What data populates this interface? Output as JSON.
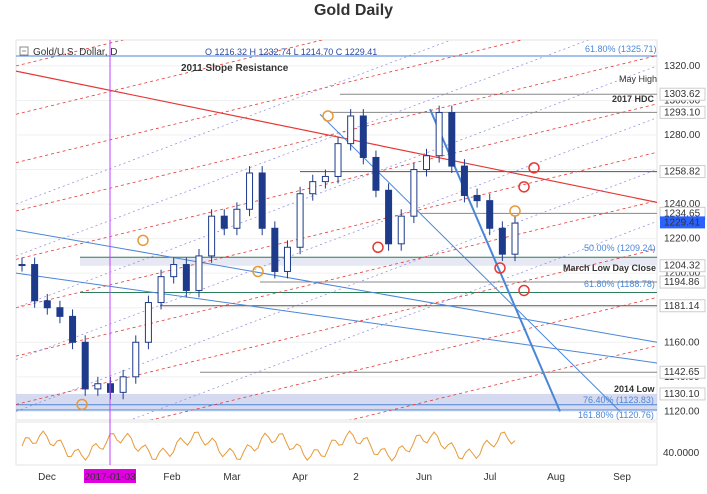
{
  "title": "Gold Daily",
  "header": {
    "instrument": "Gold/U.S. Dollar, D",
    "ohlc": "O 1216.32  H 1232.74  L 1214.70  C 1229.41"
  },
  "annotations": {
    "slope_resistance": "2011 Slope Resistance",
    "may_high": "May High",
    "hdc_2017": "2017 HDC",
    "march_low_close": "March Low Day Close",
    "low_2014": "2014 Low",
    "fib_1325": "61.80% (1325.71)",
    "fib_1209": "50.00% (1209.24)",
    "fib_1188": "61.80% (1188.78)",
    "fib_1123": "76.40% (1123.83)",
    "fib_1120": "161.80% (1120.76)"
  },
  "price_axis": {
    "ticks": [
      "1320.00",
      "1300.00",
      "1280.00",
      "1260.00",
      "1240.00",
      "1220.00",
      "1200.00",
      "1180.00",
      "1160.00",
      "1140.00",
      "1120.00"
    ],
    "boxed_levels": [
      {
        "label": "1303.62",
        "value": 1303.62
      },
      {
        "label": "1293.10",
        "value": 1293.1
      },
      {
        "label": "1258.82",
        "value": 1258.82
      },
      {
        "label": "1234.65",
        "value": 1234.65
      },
      {
        "label": "1204.32",
        "value": 1204.32
      },
      {
        "label": "1194.86",
        "value": 1194.86
      },
      {
        "label": "1181.14",
        "value": 1181.14
      },
      {
        "label": "1142.65",
        "value": 1142.65
      },
      {
        "label": "1130.10",
        "value": 1130.1
      }
    ],
    "last_price": {
      "label": "1229.41",
      "value": 1229.41,
      "color": "#2962ff"
    }
  },
  "time_axis": {
    "labels": [
      "Dec",
      "2017-01-03",
      "Feb",
      "Mar",
      "Apr",
      "2",
      "Jun",
      "Jul",
      "Aug",
      "Sep"
    ],
    "highlight_label": "2017-01-03",
    "highlight_color": "#e000e0"
  },
  "oscillator": {
    "tick": "40.0000"
  },
  "colors": {
    "candle": "#1e3a8a",
    "resistance": "#e53935",
    "channel": "#4a86d8",
    "osc": "#e69a3a",
    "band": "#c5cae9"
  },
  "chart_data": {
    "type": "candlestick",
    "title": "Gold Daily",
    "instrument": "Gold/U.S. Dollar, D",
    "last": {
      "open": 1216.32,
      "high": 1232.74,
      "low": 1214.7,
      "close": 1229.41
    },
    "ylim": [
      1115,
      1335
    ],
    "series": [
      {
        "date": "Nov-28",
        "close": 1205
      },
      {
        "date": "Dec-01",
        "close": 1184
      },
      {
        "date": "Dec-05",
        "close": 1180
      },
      {
        "date": "Dec-08",
        "close": 1175
      },
      {
        "date": "Dec-12",
        "close": 1160
      },
      {
        "date": "Dec-15",
        "close": 1133
      },
      {
        "date": "Dec-19",
        "close": 1136
      },
      {
        "date": "Dec-22",
        "close": 1131
      },
      {
        "date": "Dec-28",
        "close": 1140
      },
      {
        "date": "Jan-03",
        "close": 1160
      },
      {
        "date": "Jan-09",
        "close": 1183
      },
      {
        "date": "Jan-13",
        "close": 1198
      },
      {
        "date": "Jan-19",
        "close": 1205
      },
      {
        "date": "Jan-25",
        "close": 1190
      },
      {
        "date": "Jan-30",
        "close": 1210
      },
      {
        "date": "Feb-06",
        "close": 1233
      },
      {
        "date": "Feb-13",
        "close": 1226
      },
      {
        "date": "Feb-21",
        "close": 1237
      },
      {
        "date": "Feb-27",
        "close": 1258
      },
      {
        "date": "Mar-03",
        "close": 1226
      },
      {
        "date": "Mar-09",
        "close": 1201
      },
      {
        "date": "Mar-15",
        "close": 1215
      },
      {
        "date": "Mar-20",
        "close": 1246
      },
      {
        "date": "Mar-27",
        "close": 1253
      },
      {
        "date": "Apr-03",
        "close": 1256
      },
      {
        "date": "Apr-10",
        "close": 1275
      },
      {
        "date": "Apr-17",
        "close": 1291
      },
      {
        "date": "Apr-24",
        "close": 1267
      },
      {
        "date": "May-01",
        "close": 1248
      },
      {
        "date": "May-09",
        "close": 1217
      },
      {
        "date": "May-15",
        "close": 1233
      },
      {
        "date": "May-22",
        "close": 1260
      },
      {
        "date": "May-30",
        "close": 1268
      },
      {
        "date": "Jun-06",
        "close": 1293
      },
      {
        "date": "Jun-12",
        "close": 1262
      },
      {
        "date": "Jun-19",
        "close": 1245
      },
      {
        "date": "Jun-26",
        "close": 1242
      },
      {
        "date": "Jul-03",
        "close": 1226
      },
      {
        "date": "Jul-10",
        "close": 1211
      },
      {
        "date": "Jul-14",
        "close": 1229
      }
    ],
    "levels": [
      1325.71,
      1303.62,
      1293.1,
      1258.82,
      1234.65,
      1209.24,
      1204.32,
      1194.86,
      1188.78,
      1181.14,
      1142.65,
      1130.1,
      1123.83,
      1120.76
    ]
  }
}
